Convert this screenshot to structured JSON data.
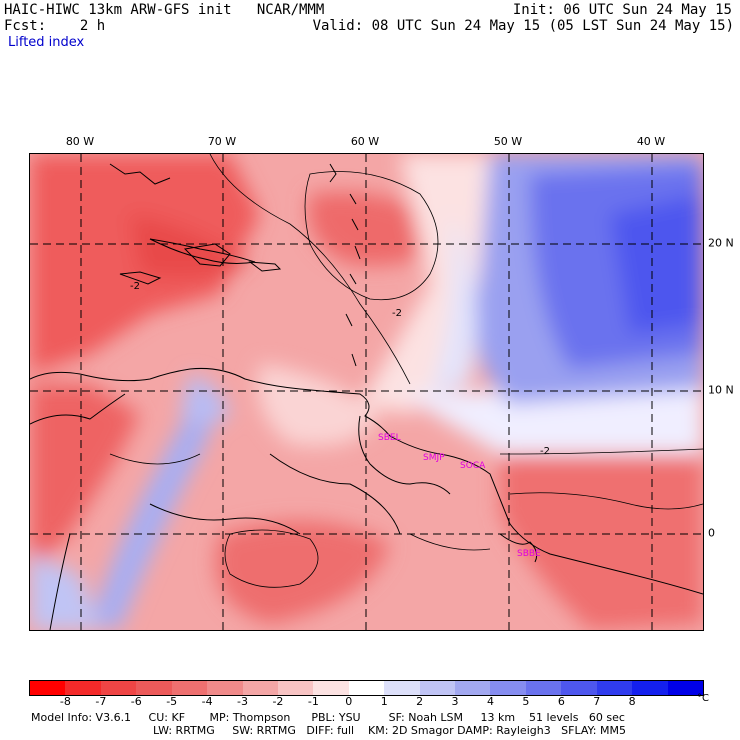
{
  "header": {
    "left_line1": "HAIC-HIWC 13km ARW-GFS init   NCAR/MMM",
    "left_line2": "Fcst:    2 h",
    "field": "Lifted index",
    "right_line1": "Init: 06 UTC Sun 24 May 15",
    "right_line2": "Valid: 08 UTC Sun 24 May 15 (05 LST Sun 24 May 15)"
  },
  "map": {
    "lon_labels": [
      "80 W",
      "70 W",
      "60 W",
      "50 W",
      "40 W"
    ],
    "lat_labels": [
      "20 N",
      "10 N",
      "0"
    ],
    "contour_labels": [
      "-2",
      "-2",
      "-2"
    ],
    "stations": [
      "SBEL",
      "SMJP",
      "SOCA",
      "SBBE"
    ],
    "colors": {
      "coastline": "#000000",
      "grid": "#000000",
      "station": "#e000e0"
    }
  },
  "colorbar": {
    "ticks": [
      "-8",
      "-7",
      "-6",
      "-5",
      "-4",
      "-3",
      "-2",
      "-1",
      "0",
      "1",
      "2",
      "3",
      "4",
      "5",
      "6",
      "7",
      "8"
    ],
    "unit": "°C",
    "colors": [
      "#ff0000",
      "#f42a2a",
      "#ef4545",
      "#ec5a5a",
      "#ee7070",
      "#f08a8a",
      "#f4a6a6",
      "#f8c4c4",
      "#fce2e2",
      "#ffffff",
      "#dde0fa",
      "#c0c4f5",
      "#a2a8f0",
      "#868df0",
      "#6a72ee",
      "#4e57ee",
      "#303cee",
      "#1420ee",
      "#0000e8"
    ]
  },
  "model_info": {
    "line1": "Model Info: V3.6.1     CU: KF       MP: Thompson      PBL: YSU        SF: Noah LSM     13 km    51 levels   60 sec",
    "line2": "LW: RRTMG     SW: RRTMG   DIFF: full    KM: 2D Smagor DAMP: Rayleigh3   SFLAY: MM5"
  }
}
